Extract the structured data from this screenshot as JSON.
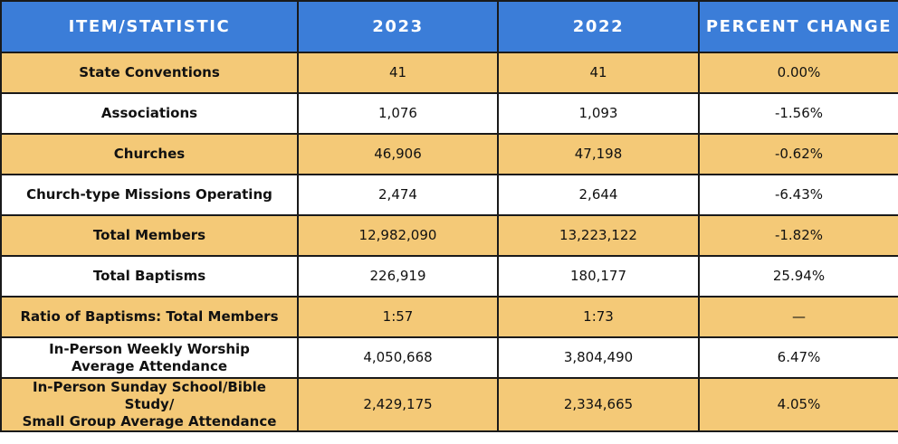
{
  "table": {
    "header": [
      "ITEM/STATISTIC",
      "2023",
      "2022",
      "PERCENT CHANGE"
    ],
    "rows": [
      [
        "State Conventions",
        "41",
        "41",
        "0.00%"
      ],
      [
        "Associations",
        "1,076",
        "1,093",
        "-1.56%"
      ],
      [
        "Churches",
        "46,906",
        "47,198",
        "-0.62%"
      ],
      [
        "Church-type Missions Operating",
        "2,474",
        "2,644",
        "-6.43%"
      ],
      [
        "Total Members",
        "12,982,090",
        "13,223,122",
        "-1.82%"
      ],
      [
        "Total Baptisms",
        "226,919",
        "180,177",
        "25.94%"
      ],
      [
        "Ratio of Baptisms: Total Members",
        "1:57",
        "1:73",
        "—"
      ],
      [
        "In-Person Weekly Worship\nAverage Attendance",
        "4,050,668",
        "3,804,490",
        "6.47%"
      ],
      [
        "In-Person Sunday School/Bible Study/\nSmall Group Average Attendance",
        "2,429,175",
        "2,334,665",
        "4.05%"
      ]
    ]
  }
}
